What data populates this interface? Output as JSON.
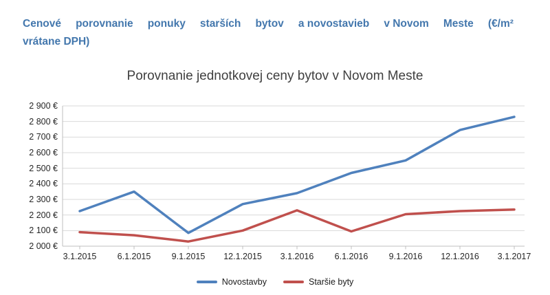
{
  "header": {
    "title_line1": "Cenové porovnanie ponuky starších bytov a novostavieb v Novom Meste (€/m²",
    "title_line1_words": [
      "Cenové",
      "porovnanie",
      "ponuky",
      "starších",
      "bytov",
      "a novostavieb",
      "v Novom",
      "Meste",
      "(€/m²"
    ],
    "title_line2": "vrátane DPH)",
    "color": "#4377AD"
  },
  "chart_data": {
    "type": "line",
    "title": "Porovnanie jednotkovej ceny bytov v Novom Meste",
    "categories": [
      "3.1.2015",
      "6.1.2015",
      "9.1.2015",
      "12.1.2015",
      "3.1.2016",
      "6.1.2016",
      "9.1.2016",
      "12.1.2016",
      "3.1.2017"
    ],
    "series": [
      {
        "name": "Novostavby",
        "color": "#4F81BD",
        "values": [
          2225,
          2350,
          2085,
          2270,
          2340,
          2470,
          2550,
          2745,
          2830
        ]
      },
      {
        "name": "Staršie byty",
        "color": "#C0504D",
        "values": [
          2090,
          2070,
          2030,
          2100,
          2230,
          2095,
          2205,
          2225,
          2235
        ]
      }
    ],
    "ylim": [
      2000,
      2900
    ],
    "y_tick_step": 100,
    "y_tick_labels_top_to_bottom": [
      "2 900 €",
      "2 800 €",
      "2 700 €",
      "2 600 €",
      "2 500 €",
      "2 400 €",
      "2 300 €",
      "2 200 €",
      "2 100 €",
      "2 000 €"
    ],
    "xlabel": "",
    "ylabel": "",
    "grid": true,
    "legend_position": "bottom",
    "grid_color": "#D9D9D9",
    "axis_color": "#BFBFBF"
  }
}
